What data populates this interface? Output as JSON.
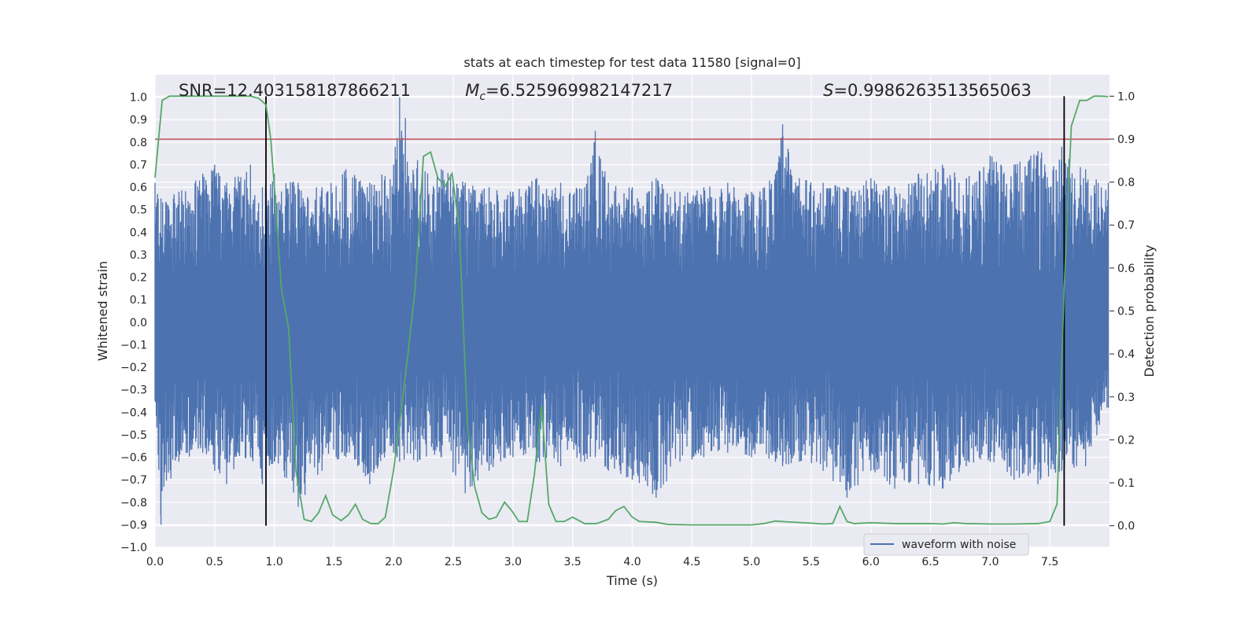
{
  "chart_data": {
    "type": "line",
    "title": "stats at each timestep for test data 11580 [signal=0]",
    "xlabel": "Time (s)",
    "ylabel_left": "Whitened strain",
    "ylabel_right": "Detection probability",
    "xlim": [
      0,
      8
    ],
    "ylim_left": [
      -1.0,
      1.1
    ],
    "ylim_right": [
      -0.05,
      1.05
    ],
    "x_ticks": [
      "0.0",
      "0.5",
      "1.0",
      "1.5",
      "2.0",
      "2.5",
      "3.0",
      "3.5",
      "4.0",
      "4.5",
      "5.0",
      "5.5",
      "6.0",
      "6.5",
      "7.0",
      "7.5"
    ],
    "y_ticks_left": [
      "-1.0",
      "-0.9",
      "-0.8",
      "-0.7",
      "-0.6",
      "-0.5",
      "-0.4",
      "-0.3",
      "-0.2",
      "-0.1",
      "0.0",
      "0.1",
      "0.2",
      "0.3",
      "0.4",
      "0.5",
      "0.6",
      "0.7",
      "0.8",
      "0.9",
      "1.0"
    ],
    "y_ticks_right": [
      "0.0",
      "0.1",
      "0.2",
      "0.3",
      "0.4",
      "0.5",
      "0.6",
      "0.7",
      "0.8",
      "0.9",
      "1.0"
    ],
    "grid": true,
    "legend_position": "lower-right",
    "annotations": {
      "snr": "SNR=12.403158187866211",
      "mc_symbol": "M",
      "mc_subscript": "c",
      "mc_value": "=6.525969982147217",
      "s_symbol": "S",
      "s_value": "=0.9986263513565063"
    },
    "threshold_line": {
      "axis": "right",
      "y": 0.9,
      "color": "#c44e52"
    },
    "vertical_lines": [
      0.93,
      7.62
    ],
    "series": [
      {
        "name": "waveform with noise",
        "axis": "left",
        "color": "#4c72b0",
        "envelope": {
          "x": [
            0.0,
            0.05,
            0.2,
            0.4,
            0.5,
            0.6,
            0.8,
            0.9,
            1.0,
            1.2,
            1.4,
            1.6,
            1.8,
            2.0,
            2.05,
            2.2,
            2.4,
            2.6,
            2.8,
            3.0,
            3.2,
            3.4,
            3.6,
            3.69,
            3.8,
            4.0,
            4.2,
            4.4,
            4.6,
            4.8,
            5.0,
            5.2,
            5.26,
            5.4,
            5.6,
            5.8,
            6.0,
            6.2,
            6.4,
            6.6,
            6.8,
            7.0,
            7.2,
            7.4,
            7.6,
            7.8,
            7.99
          ],
          "upper": [
            0.62,
            0.55,
            0.58,
            0.66,
            0.7,
            0.62,
            0.7,
            0.6,
            0.66,
            0.62,
            0.6,
            0.68,
            0.62,
            0.7,
            1.0,
            0.72,
            0.68,
            0.62,
            0.6,
            0.58,
            0.64,
            0.62,
            0.6,
            0.85,
            0.62,
            0.6,
            0.64,
            0.58,
            0.6,
            0.62,
            0.58,
            0.66,
            0.88,
            0.64,
            0.62,
            0.6,
            0.64,
            0.6,
            0.66,
            0.7,
            0.64,
            0.74,
            0.7,
            0.76,
            0.78,
            0.68,
            0.62
          ],
          "lower": [
            -0.35,
            -0.9,
            -0.62,
            -0.58,
            -0.66,
            -0.72,
            -0.6,
            -0.72,
            -0.62,
            -0.82,
            -0.66,
            -0.6,
            -0.72,
            -0.58,
            -0.62,
            -0.62,
            -0.6,
            -0.76,
            -0.66,
            -0.6,
            -0.62,
            -0.64,
            -0.62,
            -0.6,
            -0.66,
            -0.7,
            -0.78,
            -0.62,
            -0.6,
            -0.58,
            -0.6,
            -0.62,
            -0.64,
            -0.62,
            -0.66,
            -0.78,
            -0.66,
            -0.74,
            -0.72,
            -0.74,
            -0.64,
            -0.62,
            -0.7,
            -0.72,
            -0.66,
            -0.64,
            -0.38
          ]
        }
      },
      {
        "name": "",
        "axis": "right",
        "color": "#55a868",
        "x": [
          0.0,
          0.06,
          0.12,
          0.2,
          0.3,
          0.4,
          0.5,
          0.6,
          0.7,
          0.8,
          0.87,
          0.93,
          0.97,
          1.0,
          1.06,
          1.12,
          1.18,
          1.25,
          1.31,
          1.37,
          1.43,
          1.49,
          1.56,
          1.62,
          1.68,
          1.74,
          1.81,
          1.87,
          1.93,
          2.0,
          2.06,
          2.12,
          2.18,
          2.25,
          2.31,
          2.37,
          2.43,
          2.49,
          2.55,
          2.62,
          2.68,
          2.74,
          2.8,
          2.86,
          2.93,
          2.99,
          3.05,
          3.12,
          3.18,
          3.24,
          3.3,
          3.36,
          3.43,
          3.5,
          3.6,
          3.7,
          3.8,
          3.86,
          3.93,
          4.0,
          4.06,
          4.2,
          4.3,
          4.5,
          5.0,
          5.1,
          5.2,
          5.3,
          5.5,
          5.6,
          5.68,
          5.74,
          5.8,
          5.86,
          6.0,
          6.2,
          6.5,
          6.6,
          6.7,
          6.8,
          7.0,
          7.2,
          7.4,
          7.5,
          7.56,
          7.62,
          7.68,
          7.75,
          7.81,
          7.87,
          7.93,
          7.99
        ],
        "y": [
          0.81,
          0.99,
          1.0,
          1.0,
          1.0,
          1.0,
          1.0,
          1.0,
          1.0,
          1.0,
          0.995,
          0.98,
          0.9,
          0.79,
          0.55,
          0.46,
          0.13,
          0.015,
          0.01,
          0.03,
          0.07,
          0.025,
          0.012,
          0.025,
          0.05,
          0.015,
          0.005,
          0.005,
          0.02,
          0.13,
          0.26,
          0.4,
          0.55,
          0.86,
          0.87,
          0.81,
          0.79,
          0.82,
          0.69,
          0.23,
          0.09,
          0.03,
          0.015,
          0.02,
          0.055,
          0.035,
          0.01,
          0.01,
          0.12,
          0.28,
          0.05,
          0.01,
          0.01,
          0.02,
          0.005,
          0.005,
          0.015,
          0.035,
          0.045,
          0.02,
          0.01,
          0.008,
          0.003,
          0.002,
          0.002,
          0.005,
          0.011,
          0.009,
          0.006,
          0.004,
          0.005,
          0.045,
          0.01,
          0.005,
          0.007,
          0.005,
          0.005,
          0.004,
          0.007,
          0.005,
          0.004,
          0.004,
          0.005,
          0.01,
          0.05,
          0.55,
          0.93,
          0.99,
          0.99,
          1.0,
          1.0,
          0.999
        ]
      }
    ]
  }
}
